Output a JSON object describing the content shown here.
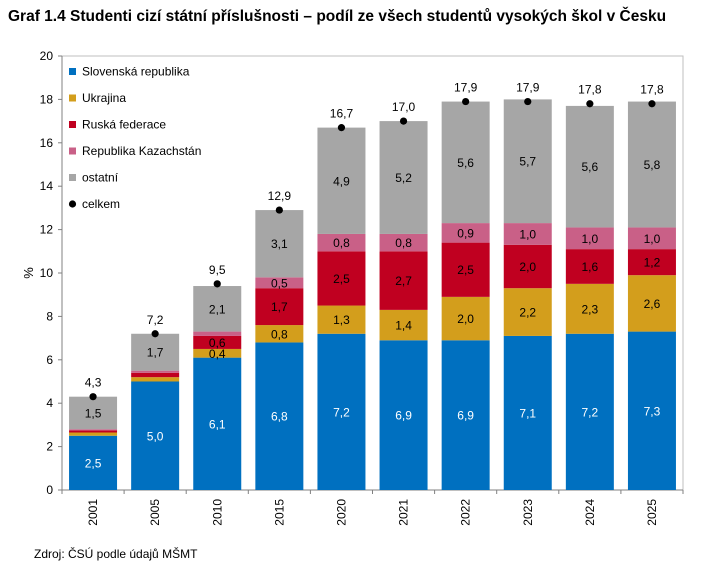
{
  "chart_data": {
    "type": "bar",
    "stacked": true,
    "title": "Graf 1.4 Studenti cizí státní příslušnosti – podíl ze všech studentů vysokých škol v Česku",
    "source": "Zdroj: ČSÚ podle údajů MŠMT",
    "ylabel": "%",
    "xlabel": "",
    "ylim": [
      0,
      20
    ],
    "yticks": [
      "0",
      "2",
      "4",
      "6",
      "8",
      "10",
      "12",
      "14",
      "16",
      "18",
      "20"
    ],
    "grid": false,
    "legend_position": "top-left",
    "categories": [
      "2001",
      "2005",
      "2010",
      "2015",
      "2020",
      "2021",
      "2022",
      "2023",
      "2024",
      "2025"
    ],
    "series": [
      {
        "name": "Slovenská republika",
        "color": "#0070c0",
        "values": [
          2.5,
          5.0,
          6.1,
          6.8,
          7.2,
          6.9,
          6.9,
          7.1,
          7.2,
          7.3
        ],
        "labels": [
          "2,5",
          "5,0",
          "6,1",
          "6,8",
          "7,2",
          "6,9",
          "6,9",
          "7,1",
          "7,2",
          "7,3"
        ],
        "label_color": "#ffffff"
      },
      {
        "name": "Ukrajina",
        "color": "#d39e1c",
        "values": [
          0.15,
          0.2,
          0.4,
          0.8,
          1.3,
          1.4,
          2.0,
          2.2,
          2.3,
          2.6
        ],
        "labels": [
          "",
          "",
          "0,4",
          "0,8",
          "1,3",
          "1,4",
          "2,0",
          "2,2",
          "2,3",
          "2,6"
        ],
        "label_color": "#000000"
      },
      {
        "name": "Ruská federace",
        "color": "#c00020",
        "values": [
          0.1,
          0.2,
          0.6,
          1.7,
          2.5,
          2.7,
          2.5,
          2.0,
          1.6,
          1.2
        ],
        "labels": [
          "",
          "",
          "0,6",
          "1,7",
          "2,5",
          "2,7",
          "2,5",
          "2,0",
          "1,6",
          "1,2"
        ],
        "label_color": "#000000"
      },
      {
        "name": "Republika Kazachstán",
        "color": "#c96087",
        "values": [
          0.05,
          0.1,
          0.2,
          0.5,
          0.8,
          0.8,
          0.9,
          1.0,
          1.0,
          1.0
        ],
        "labels": [
          "",
          "",
          "",
          "0,5",
          "0,8",
          "0,8",
          "0,9",
          "1,0",
          "1,0",
          "1,0"
        ],
        "label_color": "#000000"
      },
      {
        "name": "ostatní",
        "color": "#a6a6a6",
        "values": [
          1.5,
          1.7,
          2.1,
          3.1,
          4.9,
          5.2,
          5.6,
          5.7,
          5.6,
          5.8
        ],
        "labels": [
          "1,5",
          "1,7",
          "2,1",
          "3,1",
          "4,9",
          "5,2",
          "5,6",
          "5,7",
          "5,6",
          "5,8"
        ],
        "label_color": "#000000"
      }
    ],
    "total": {
      "name": "celkem",
      "color": "#000000",
      "values": [
        4.3,
        7.2,
        9.5,
        12.9,
        16.7,
        17.0,
        17.9,
        17.9,
        17.8,
        17.8
      ],
      "labels": [
        "4,3",
        "7,2",
        "9,5",
        "12,9",
        "16,7",
        "17,0",
        "17,9",
        "17,9",
        "17,8",
        "17,8"
      ]
    }
  }
}
